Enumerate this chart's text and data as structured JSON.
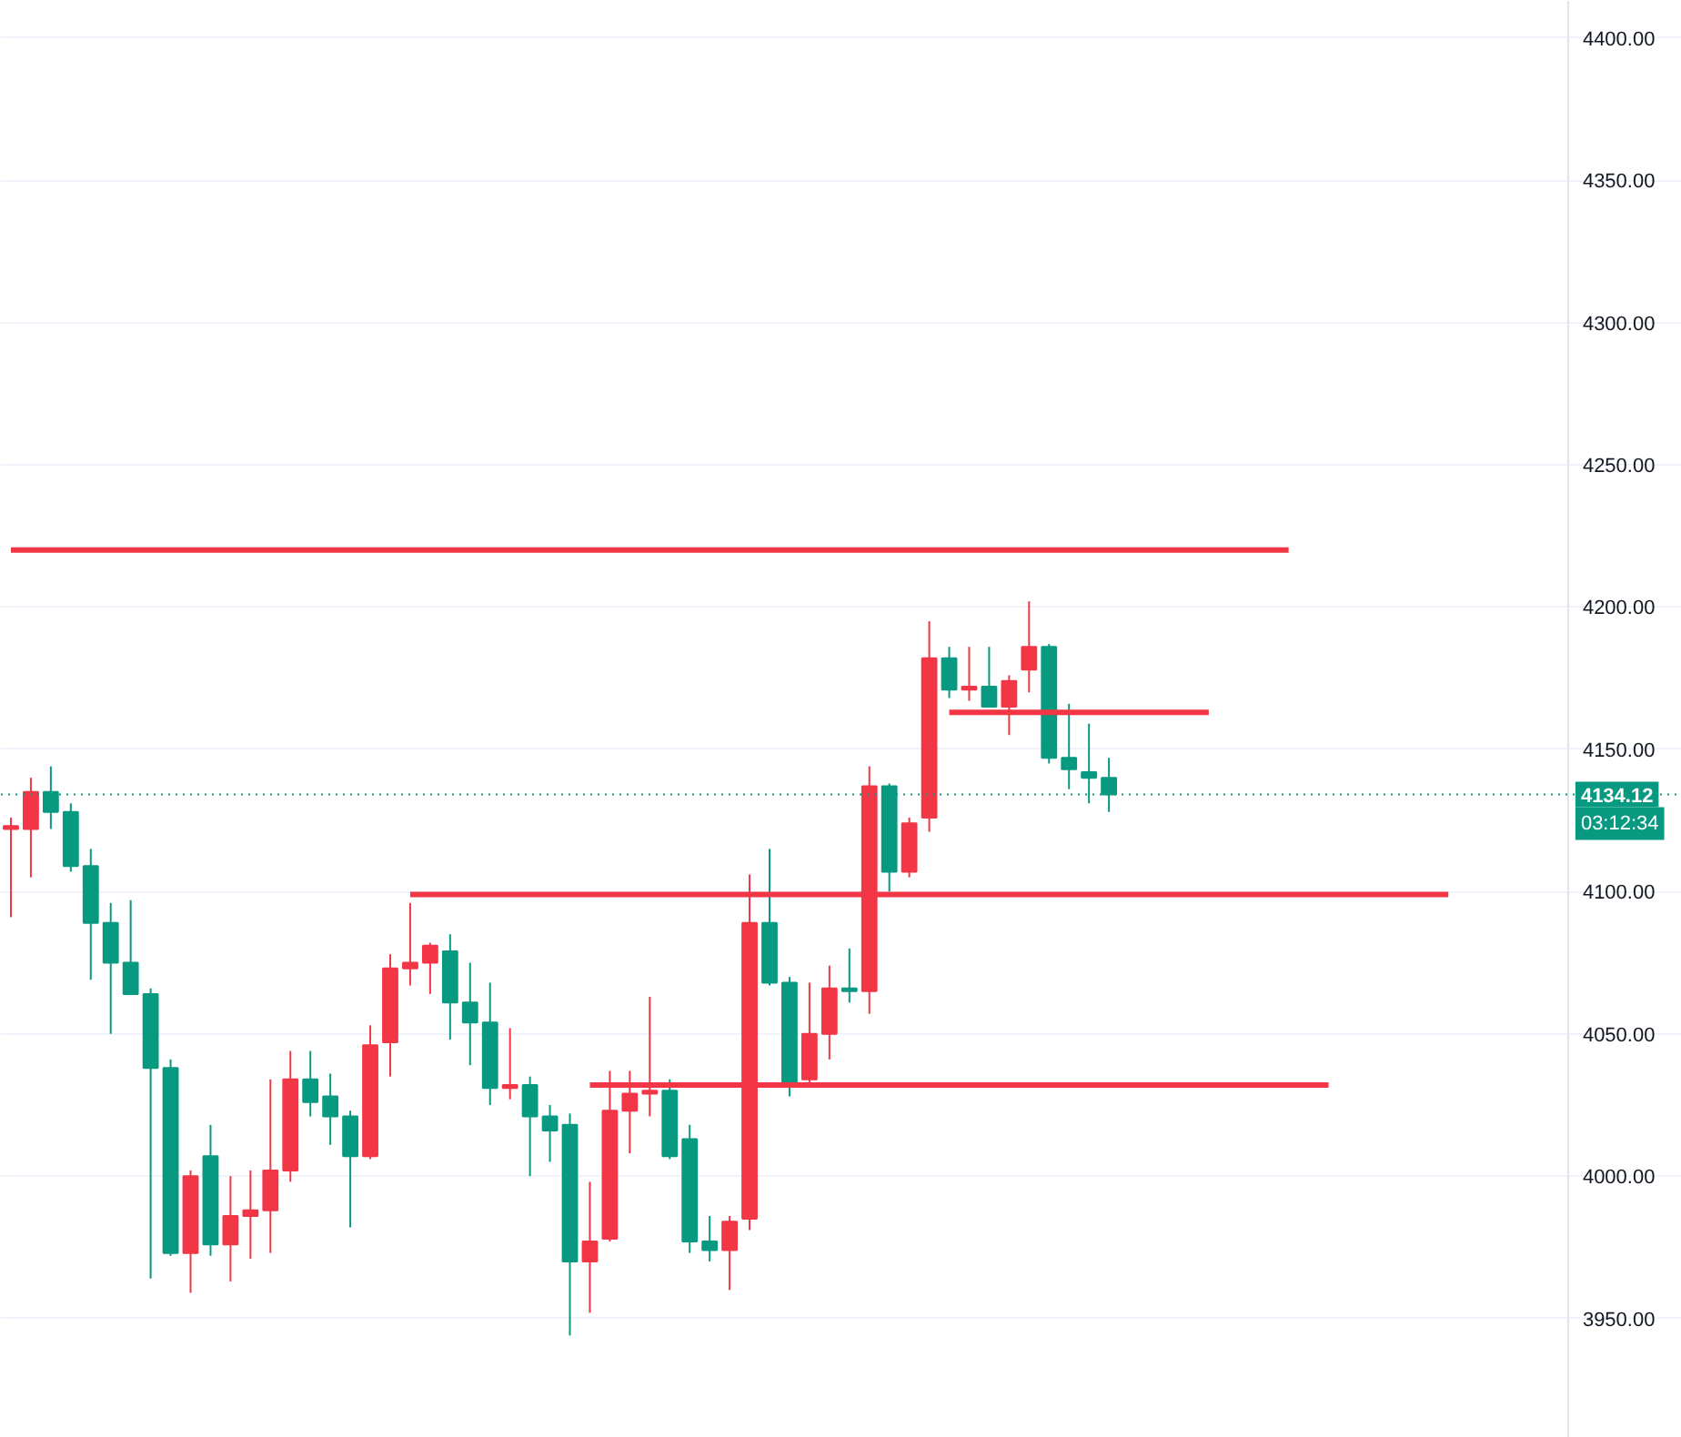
{
  "chart_data": {
    "type": "candlestick",
    "categories": [
      null,
      null,
      null,
      null,
      null,
      null,
      null,
      null,
      null,
      null,
      null,
      null,
      null,
      null,
      null,
      null,
      null,
      null,
      null,
      null,
      null,
      null,
      null,
      null,
      null,
      null,
      null,
      null,
      null,
      null,
      null,
      null,
      null,
      null,
      null,
      null,
      null,
      null,
      null,
      null,
      null,
      null,
      null,
      null,
      null,
      null,
      null,
      null,
      null,
      null,
      null,
      null,
      null,
      null,
      null,
      null,
      null,
      null,
      null,
      null,
      null,
      null,
      null,
      null,
      null,
      null,
      null,
      null,
      null,
      null,
      null,
      null,
      null
    ],
    "ohlc": [
      [
        4122,
        4126,
        4091,
        4123
      ],
      [
        4122,
        4140,
        4105,
        4135
      ],
      [
        4135,
        4144,
        4122,
        4128
      ],
      [
        4128,
        4131,
        4107,
        4109
      ],
      [
        4109,
        4115,
        4069,
        4089
      ],
      [
        4089,
        4096,
        4050,
        4075
      ],
      [
        4075,
        4097,
        4064,
        4064
      ],
      [
        4064,
        4066,
        3964,
        4038
      ],
      [
        4038,
        4041,
        3972,
        3973
      ],
      [
        3973,
        4002,
        3959,
        4000
      ],
      [
        4007,
        4018,
        3972,
        3976
      ],
      [
        3976,
        4000,
        3963,
        3986
      ],
      [
        3986,
        4002,
        3971,
        3988
      ],
      [
        3988,
        4034,
        3973,
        4002
      ],
      [
        4002,
        4044,
        3998,
        4034
      ],
      [
        4034,
        4044,
        4021,
        4026
      ],
      [
        4028,
        4036,
        4011,
        4021
      ],
      [
        4021,
        4023,
        3982,
        4007
      ],
      [
        4007,
        4053,
        4006,
        4046
      ],
      [
        4047,
        4078,
        4035,
        4073
      ],
      [
        4073,
        4096,
        4067,
        4075
      ],
      [
        4075,
        4082,
        4064,
        4081
      ],
      [
        4079,
        4085,
        4048,
        4061
      ],
      [
        4061,
        4075,
        4039,
        4054
      ],
      [
        4054,
        4068,
        4025,
        4031
      ],
      [
        4031,
        4052,
        4027,
        4032
      ],
      [
        4032,
        4035,
        4000,
        4021
      ],
      [
        4021,
        4025,
        4005,
        4016
      ],
      [
        4018,
        4022,
        3944,
        3970
      ],
      [
        3970,
        3998,
        3952,
        3977
      ],
      [
        3978,
        4037,
        3977,
        4023
      ],
      [
        4023,
        4037,
        4008,
        4029
      ],
      [
        4029,
        4063,
        4021,
        4030
      ],
      [
        4030,
        4034,
        4006,
        4007
      ],
      [
        4013,
        4018,
        3973,
        3977
      ],
      [
        3977,
        3986,
        3970,
        3974
      ],
      [
        3974,
        3986,
        3960,
        3984
      ],
      [
        3985,
        4106,
        3981,
        4089
      ],
      [
        4089,
        4115,
        4067,
        4068
      ],
      [
        4068,
        4070,
        4028,
        4032
      ],
      [
        4034,
        4068,
        4032,
        4050
      ],
      [
        4050,
        4074,
        4041,
        4066
      ],
      [
        4066,
        4080,
        4061,
        4065
      ],
      [
        4065,
        4144,
        4057,
        4137
      ],
      [
        4137,
        4138,
        4100,
        4107
      ],
      [
        4107,
        4126,
        4105,
        4124
      ],
      [
        4126,
        4195,
        4121,
        4182
      ],
      [
        4182,
        4186,
        4168,
        4171
      ],
      [
        4171,
        4186,
        4167,
        4172
      ],
      [
        4172,
        4186,
        4165,
        4165
      ],
      [
        4165,
        4176,
        4155,
        4174
      ],
      [
        4178,
        4202,
        4170,
        4186
      ],
      [
        4186,
        4187,
        4145,
        4147
      ],
      [
        4147,
        4166,
        4136,
        4143
      ],
      [
        4142,
        4159,
        4131,
        4140
      ],
      [
        4140,
        4147,
        4128,
        4134.12
      ],
      null,
      null,
      null,
      null,
      null,
      null,
      null,
      null,
      null,
      null,
      null,
      null,
      null,
      null,
      null,
      null,
      null
    ],
    "colors": [
      "#f23645",
      "#f23645",
      "#089981",
      "#089981",
      "#089981",
      "#089981",
      "#089981",
      "#089981",
      "#089981",
      "#f23645",
      "#089981",
      "#f23645",
      "#f23645",
      "#f23645",
      "#f23645",
      "#089981",
      "#089981",
      "#089981",
      "#f23645",
      "#f23645",
      "#f23645",
      "#f23645",
      "#089981",
      "#089981",
      "#089981",
      "#f23645",
      "#089981",
      "#089981",
      "#089981",
      "#f23645",
      "#f23645",
      "#f23645",
      "#f23645",
      "#089981",
      "#089981",
      "#089981",
      "#f23645",
      "#f23645",
      "#089981",
      "#089981",
      "#f23645",
      "#f23645",
      "#089981",
      "#f23645",
      "#089981",
      "#f23645",
      "#f23645",
      "#089981",
      "#f23645",
      "#089981",
      "#f23645",
      "#f23645",
      "#089981",
      "#089981",
      "#089981",
      "#089981",
      null,
      null,
      null,
      null,
      null,
      null,
      null,
      null,
      null,
      null,
      null,
      null,
      null,
      null,
      null,
      null,
      null
    ],
    "series": [
      {
        "type": "line",
        "color": "#f23645",
        "values": [
          4220,
          4220,
          4220,
          4220,
          4220,
          4220,
          4220,
          4220,
          4220,
          4220,
          4220,
          4220,
          4220,
          4220,
          4220,
          4220,
          4220,
          4220,
          4220,
          4220,
          4220,
          4220,
          4220,
          4220,
          4220,
          4220,
          4220,
          4220,
          4220,
          4220,
          4220,
          4220,
          4220,
          4220,
          4220,
          4220,
          4220,
          4220,
          4220,
          4220,
          4220,
          4220,
          4220,
          4220,
          4220,
          4220,
          4220,
          4220,
          4220,
          4220,
          4220,
          4220,
          4220,
          4220,
          4220,
          4220,
          4220,
          4220,
          4220,
          4220,
          4220,
          4220,
          4220,
          4220,
          4220,
          null,
          null,
          null,
          null,
          null,
          null,
          null,
          null
        ]
      },
      {
        "type": "line",
        "color": "#f23645",
        "values": [
          null,
          null,
          null,
          null,
          null,
          null,
          null,
          null,
          null,
          null,
          null,
          null,
          null,
          null,
          null,
          null,
          null,
          null,
          null,
          null,
          null,
          null,
          null,
          null,
          null,
          null,
          null,
          null,
          null,
          null,
          null,
          null,
          null,
          null,
          null,
          null,
          null,
          null,
          null,
          null,
          null,
          null,
          null,
          null,
          null,
          null,
          null,
          4163,
          4163,
          4163,
          4163,
          4163,
          4163,
          4163,
          4163,
          4163,
          4163,
          4163,
          4163,
          4163,
          4163,
          null,
          null,
          null,
          null,
          null,
          null,
          null,
          null,
          null,
          null,
          null,
          null
        ]
      },
      {
        "type": "line",
        "color": "#f23645",
        "values": [
          null,
          null,
          null,
          null,
          null,
          null,
          null,
          null,
          null,
          null,
          null,
          null,
          null,
          null,
          null,
          null,
          null,
          null,
          null,
          null,
          4099,
          4099,
          4099,
          4099,
          4099,
          4099,
          4099,
          4099,
          4099,
          4099,
          4099,
          4099,
          4099,
          4099,
          4099,
          4099,
          4099,
          4099,
          4099,
          4099,
          4099,
          4099,
          4099,
          4099,
          4099,
          4099,
          4099,
          4099,
          4099,
          4099,
          4099,
          4099,
          4099,
          4099,
          4099,
          4099,
          4099,
          4099,
          4099,
          4099,
          4099,
          4099,
          4099,
          4099,
          4099,
          4099,
          4099,
          4099,
          4099,
          4099,
          4099,
          4099,
          4099
        ]
      },
      {
        "type": "line",
        "color": "#f23645",
        "values": [
          null,
          null,
          null,
          null,
          null,
          null,
          null,
          null,
          null,
          null,
          null,
          null,
          null,
          null,
          null,
          null,
          null,
          null,
          null,
          null,
          null,
          null,
          null,
          null,
          null,
          null,
          null,
          null,
          null,
          4032,
          4032,
          4032,
          4032,
          4032,
          4032,
          4032,
          4032,
          4032,
          4032,
          4032,
          4032,
          4032,
          4032,
          4032,
          4032,
          4032,
          4032,
          4032,
          4032,
          4032,
          4032,
          4032,
          4032,
          4032,
          4032,
          4032,
          4032,
          4032,
          4032,
          4032,
          4032,
          4032,
          4032,
          4032,
          4032,
          4032,
          4032,
          null,
          null,
          null,
          null,
          null,
          null
        ]
      }
    ],
    "ref_lines": [
      {
        "axis": "y",
        "value": 4134.12,
        "label": "4134.12",
        "color": "#089981",
        "line_style": "dotted"
      }
    ],
    "annotations": [
      "03:12:34"
    ],
    "ylim": [
      3908,
      4413
    ],
    "yticks": [
      {
        "value": 3950,
        "label": "3950.00"
      },
      {
        "value": 4000,
        "label": "4000.00"
      },
      {
        "value": 4050,
        "label": "4050.00"
      },
      {
        "value": 4100,
        "label": "4100.00"
      },
      {
        "value": 4150,
        "label": "4150.00"
      },
      {
        "value": 4200,
        "label": "4200.00"
      },
      {
        "value": 4250,
        "label": "4250.00"
      },
      {
        "value": 4300,
        "label": "4300.00"
      },
      {
        "value": 4350,
        "label": "4350.00"
      },
      {
        "value": 4400,
        "label": "4400.00"
      }
    ],
    "tick_labels": "y",
    "grid": "y"
  }
}
